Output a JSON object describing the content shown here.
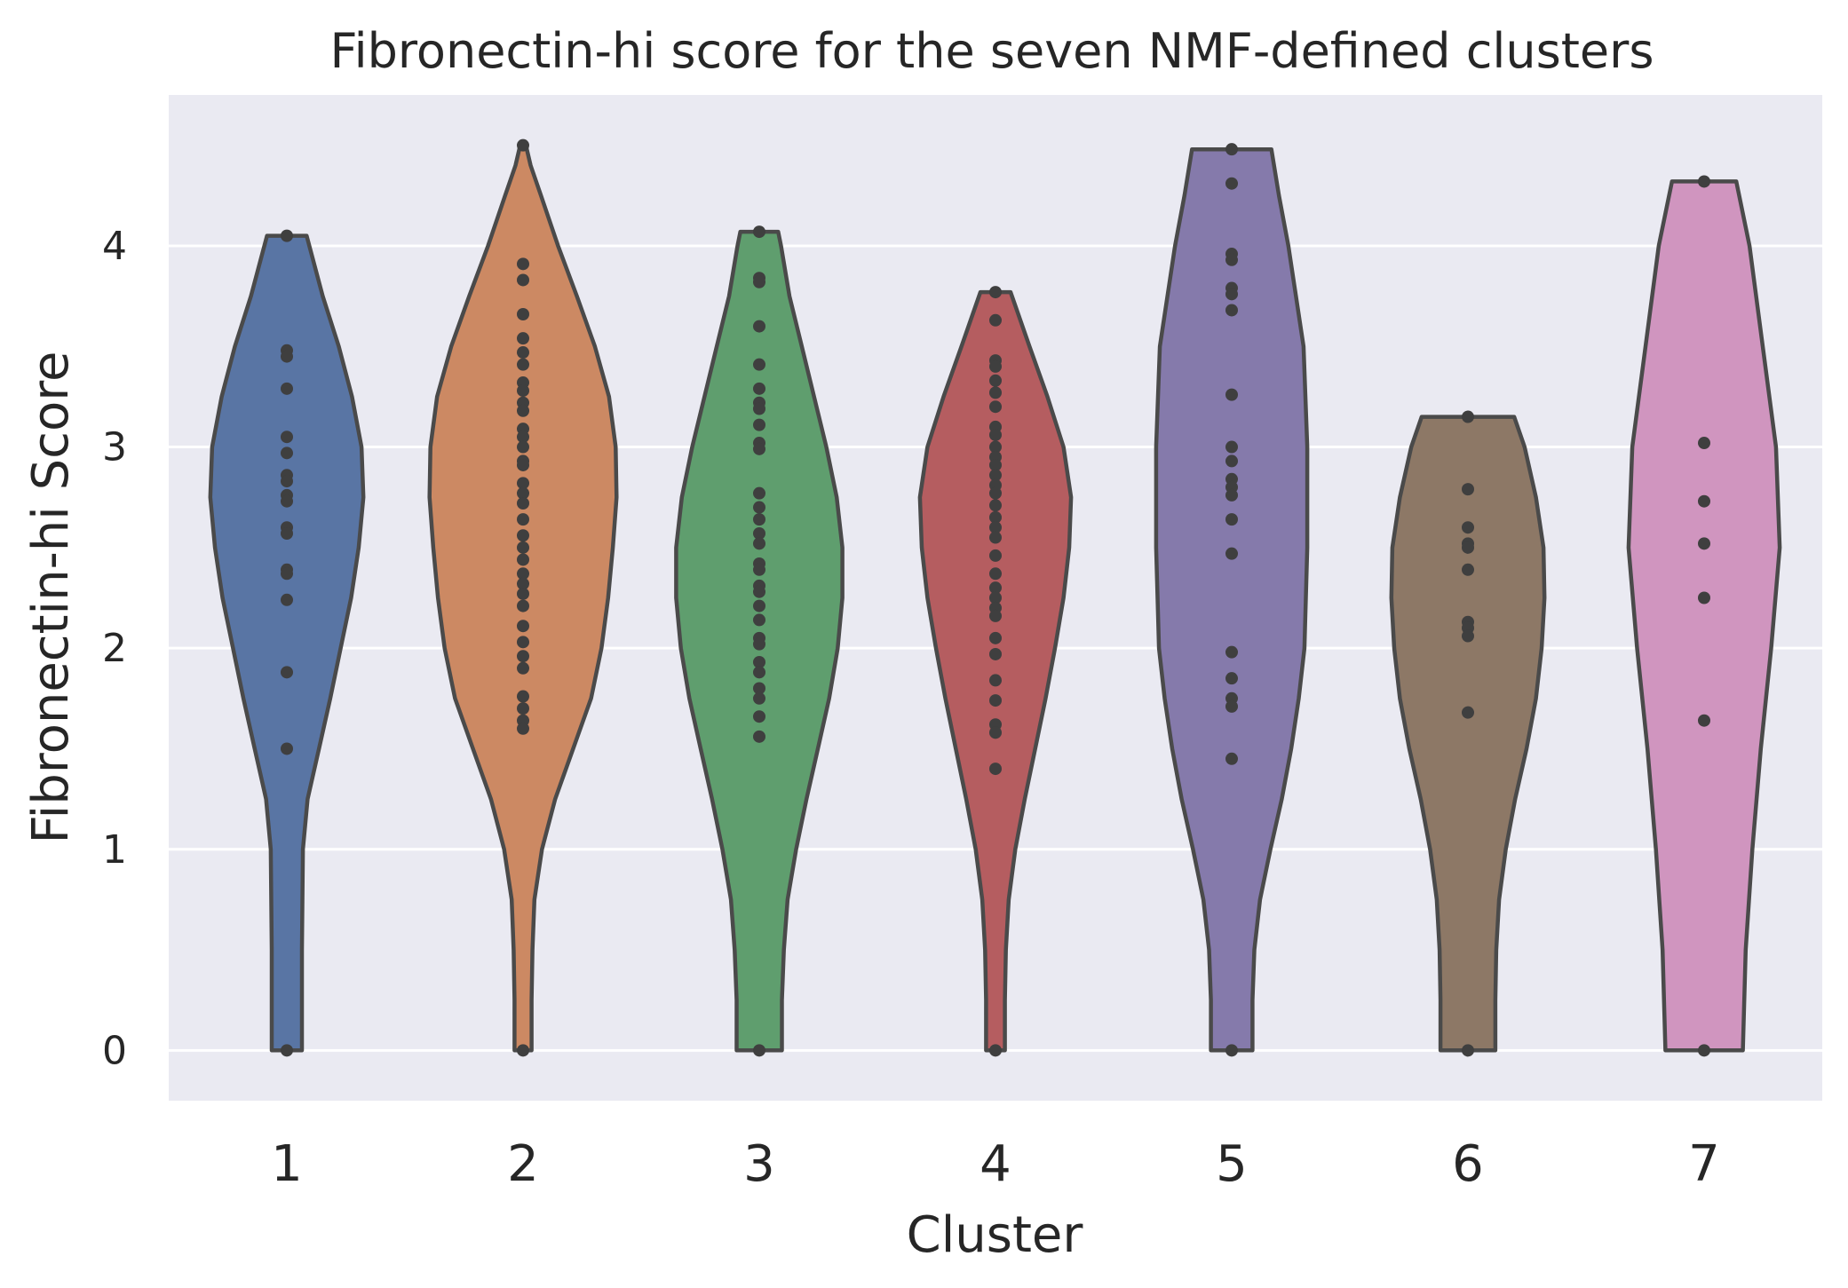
{
  "chart_data": {
    "type": "violin",
    "title": "Fibronectin-hi score for the seven NMF-defined clusters",
    "xlabel": "Cluster",
    "ylabel": "Fibronectin-hi Score",
    "categories": [
      "1",
      "2",
      "3",
      "4",
      "5",
      "6",
      "7"
    ],
    "yticks": [
      0,
      1,
      2,
      3,
      4
    ],
    "ylim": [
      -0.25,
      4.75
    ],
    "grid": true,
    "background": "#eaeaf2",
    "gridColor": "#ffffff",
    "outlineColor": "#4a4a4a",
    "pointColor": "#3f3f3f",
    "colors": [
      "#5975a4",
      "#cc8963",
      "#5f9e6e",
      "#b55d60",
      "#857aab",
      "#8d7866",
      "#d095bf"
    ],
    "series": [
      {
        "category": "1",
        "points": [
          4.05,
          3.48,
          3.45,
          3.29,
          3.05,
          2.97,
          2.86,
          2.83,
          2.76,
          2.73,
          2.6,
          2.57,
          2.39,
          2.37,
          2.24,
          1.88,
          1.5,
          0
        ],
        "profile": [
          [
            0,
            0.16
          ],
          [
            0.5,
            0.16
          ],
          [
            1.0,
            0.17
          ],
          [
            1.25,
            0.22
          ],
          [
            1.5,
            0.34
          ],
          [
            1.75,
            0.46
          ],
          [
            2.0,
            0.57
          ],
          [
            2.25,
            0.68
          ],
          [
            2.5,
            0.76
          ],
          [
            2.75,
            0.81
          ],
          [
            3.0,
            0.79
          ],
          [
            3.25,
            0.69
          ],
          [
            3.5,
            0.55
          ],
          [
            3.75,
            0.38
          ],
          [
            4.05,
            0.21
          ]
        ]
      },
      {
        "category": "2",
        "points": [
          4.5,
          3.91,
          3.83,
          3.66,
          3.54,
          3.47,
          3.41,
          3.32,
          3.28,
          3.22,
          3.18,
          3.09,
          3.05,
          3.0,
          2.93,
          2.91,
          2.82,
          2.77,
          2.72,
          2.64,
          2.56,
          2.5,
          2.44,
          2.37,
          2.32,
          2.27,
          2.21,
          2.11,
          2.03,
          1.96,
          1.9,
          1.76,
          1.7,
          1.64,
          1.6,
          0
        ],
        "profile": [
          [
            0,
            0.09
          ],
          [
            0.25,
            0.09
          ],
          [
            0.5,
            0.1
          ],
          [
            0.75,
            0.12
          ],
          [
            1.0,
            0.2
          ],
          [
            1.25,
            0.34
          ],
          [
            1.5,
            0.53
          ],
          [
            1.75,
            0.72
          ],
          [
            2.0,
            0.83
          ],
          [
            2.25,
            0.9
          ],
          [
            2.5,
            0.95
          ],
          [
            2.75,
            0.99
          ],
          [
            3.0,
            0.98
          ],
          [
            3.25,
            0.91
          ],
          [
            3.5,
            0.76
          ],
          [
            3.75,
            0.57
          ],
          [
            4.0,
            0.37
          ],
          [
            4.25,
            0.19
          ],
          [
            4.4,
            0.08
          ],
          [
            4.5,
            0.03
          ]
        ]
      },
      {
        "category": "3",
        "points": [
          4.07,
          3.84,
          3.82,
          3.6,
          3.41,
          3.29,
          3.22,
          3.19,
          3.11,
          3.02,
          2.99,
          2.77,
          2.7,
          2.64,
          2.57,
          2.52,
          2.42,
          2.39,
          2.31,
          2.28,
          2.21,
          2.14,
          2.05,
          2.02,
          1.93,
          1.88,
          1.8,
          1.75,
          1.66,
          1.56,
          0
        ],
        "profile": [
          [
            0,
            0.24
          ],
          [
            0.25,
            0.24
          ],
          [
            0.5,
            0.26
          ],
          [
            0.75,
            0.3
          ],
          [
            1.0,
            0.39
          ],
          [
            1.25,
            0.5
          ],
          [
            1.5,
            0.62
          ],
          [
            1.75,
            0.74
          ],
          [
            2.0,
            0.83
          ],
          [
            2.25,
            0.88
          ],
          [
            2.5,
            0.88
          ],
          [
            2.75,
            0.82
          ],
          [
            3.0,
            0.71
          ],
          [
            3.25,
            0.58
          ],
          [
            3.5,
            0.45
          ],
          [
            3.75,
            0.32
          ],
          [
            4.0,
            0.23
          ],
          [
            4.07,
            0.2
          ]
        ]
      },
      {
        "category": "4",
        "points": [
          3.77,
          3.63,
          3.43,
          3.4,
          3.33,
          3.27,
          3.2,
          3.1,
          3.06,
          3.0,
          2.95,
          2.91,
          2.86,
          2.81,
          2.77,
          2.71,
          2.65,
          2.6,
          2.55,
          2.46,
          2.37,
          2.3,
          2.25,
          2.2,
          2.16,
          2.05,
          1.97,
          1.84,
          1.74,
          1.62,
          1.58,
          1.4,
          0
        ],
        "profile": [
          [
            0,
            0.1
          ],
          [
            0.25,
            0.1
          ],
          [
            0.5,
            0.11
          ],
          [
            0.75,
            0.14
          ],
          [
            1.0,
            0.21
          ],
          [
            1.25,
            0.31
          ],
          [
            1.5,
            0.42
          ],
          [
            1.75,
            0.53
          ],
          [
            2.0,
            0.63
          ],
          [
            2.25,
            0.72
          ],
          [
            2.5,
            0.78
          ],
          [
            2.75,
            0.8
          ],
          [
            3.0,
            0.72
          ],
          [
            3.25,
            0.55
          ],
          [
            3.5,
            0.36
          ],
          [
            3.77,
            0.16
          ]
        ]
      },
      {
        "category": "5",
        "points": [
          4.48,
          4.31,
          3.96,
          3.93,
          3.79,
          3.76,
          3.68,
          3.26,
          3.0,
          2.93,
          2.84,
          2.8,
          2.76,
          2.64,
          2.47,
          1.98,
          1.85,
          1.75,
          1.71,
          1.45,
          0
        ],
        "profile": [
          [
            0,
            0.22
          ],
          [
            0.25,
            0.22
          ],
          [
            0.5,
            0.24
          ],
          [
            0.75,
            0.3
          ],
          [
            1.0,
            0.41
          ],
          [
            1.25,
            0.53
          ],
          [
            1.5,
            0.63
          ],
          [
            1.75,
            0.71
          ],
          [
            2.0,
            0.77
          ],
          [
            2.5,
            0.8
          ],
          [
            3.0,
            0.8
          ],
          [
            3.5,
            0.76
          ],
          [
            4.0,
            0.6
          ],
          [
            4.25,
            0.5
          ],
          [
            4.48,
            0.42
          ]
        ]
      },
      {
        "category": "6",
        "points": [
          3.15,
          2.79,
          2.6,
          2.52,
          2.5,
          2.39,
          2.13,
          2.1,
          2.06,
          1.68,
          0
        ],
        "profile": [
          [
            0,
            0.29
          ],
          [
            0.25,
            0.29
          ],
          [
            0.5,
            0.3
          ],
          [
            0.75,
            0.33
          ],
          [
            1.0,
            0.4
          ],
          [
            1.25,
            0.5
          ],
          [
            1.5,
            0.62
          ],
          [
            1.75,
            0.72
          ],
          [
            2.0,
            0.78
          ],
          [
            2.25,
            0.81
          ],
          [
            2.5,
            0.8
          ],
          [
            2.75,
            0.72
          ],
          [
            3.0,
            0.6
          ],
          [
            3.15,
            0.49
          ]
        ]
      },
      {
        "category": "7",
        "points": [
          4.32,
          3.02,
          2.73,
          2.52,
          2.25,
          1.64,
          0
        ],
        "profile": [
          [
            0,
            0.41
          ],
          [
            0.5,
            0.44
          ],
          [
            1.0,
            0.51
          ],
          [
            1.5,
            0.6
          ],
          [
            2.0,
            0.71
          ],
          [
            2.5,
            0.8
          ],
          [
            3.0,
            0.76
          ],
          [
            3.5,
            0.62
          ],
          [
            4.0,
            0.48
          ],
          [
            4.32,
            0.34
          ]
        ]
      }
    ]
  }
}
